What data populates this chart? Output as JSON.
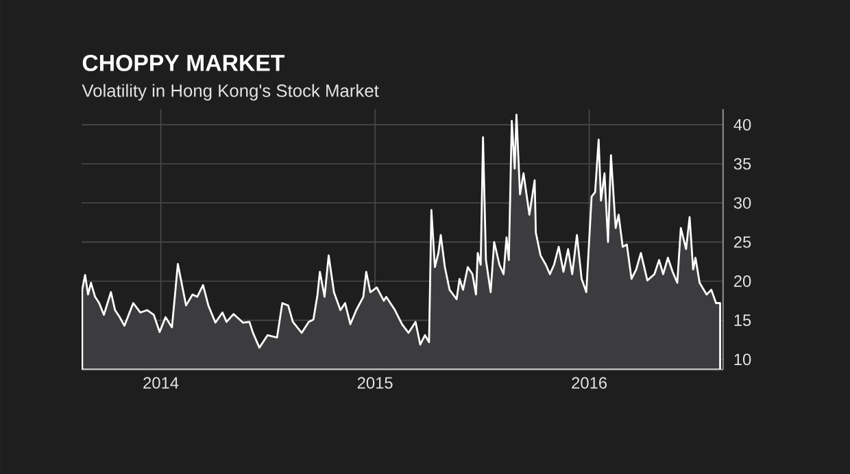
{
  "chart_data": {
    "type": "area",
    "title": "CHOPPY MARKET",
    "subtitle": "Volatility in Hong Kong's Stock Market",
    "x": [
      "2013-08-20",
      "2013-08-25",
      "2013-08-30",
      "2013-09-04",
      "2013-09-11",
      "2013-09-18",
      "2013-09-26",
      "2013-10-08",
      "2013-10-15",
      "2013-10-23",
      "2013-10-31",
      "2013-11-15",
      "2013-11-27",
      "2013-12-09",
      "2013-12-20",
      "2013-12-30",
      "2014-01-09",
      "2014-01-20",
      "2014-01-30",
      "2014-02-13",
      "2014-02-24",
      "2014-03-04",
      "2014-03-14",
      "2014-03-23",
      "2014-04-04",
      "2014-04-16",
      "2014-04-23",
      "2014-05-05",
      "2014-05-21",
      "2014-06-01",
      "2014-06-07",
      "2014-06-18",
      "2014-07-02",
      "2014-07-18",
      "2014-07-27",
      "2014-08-06",
      "2014-08-14",
      "2014-08-29",
      "2014-09-10",
      "2014-09-18",
      "2014-09-25",
      "2014-09-29",
      "2014-10-07",
      "2014-10-14",
      "2014-10-23",
      "2014-11-03",
      "2014-11-11",
      "2014-11-20",
      "2014-11-30",
      "2014-12-12",
      "2014-12-17",
      "2014-12-24",
      "2015-01-04",
      "2015-01-16",
      "2015-01-20",
      "2015-02-04",
      "2015-02-16",
      "2015-02-27",
      "2015-03-11",
      "2015-03-19",
      "2015-03-27",
      "2015-04-03",
      "2015-04-07",
      "2015-04-13",
      "2015-04-19",
      "2015-04-23",
      "2015-04-30",
      "2015-05-08",
      "2015-05-20",
      "2015-05-25",
      "2015-05-31",
      "2015-06-08",
      "2015-06-16",
      "2015-06-22",
      "2015-06-25",
      "2015-06-30",
      "2015-07-04",
      "2015-07-09",
      "2015-07-17",
      "2015-07-23",
      "2015-08-01",
      "2015-08-08",
      "2015-08-13",
      "2015-08-17",
      "2015-08-22",
      "2015-08-27",
      "2015-08-30",
      "2015-09-05",
      "2015-09-11",
      "2015-09-21",
      "2015-09-30",
      "2015-10-02",
      "2015-10-10",
      "2015-10-19",
      "2015-10-26",
      "2015-11-02",
      "2015-11-10",
      "2015-11-18",
      "2015-11-26",
      "2015-12-03",
      "2015-12-11",
      "2015-12-19",
      "2015-12-27",
      "2016-01-05",
      "2016-01-11",
      "2016-01-17",
      "2016-01-21",
      "2016-01-27",
      "2016-02-02",
      "2016-02-07",
      "2016-02-15",
      "2016-02-20",
      "2016-02-27",
      "2016-03-05",
      "2016-03-13",
      "2016-03-21",
      "2016-03-29",
      "2016-04-09",
      "2016-04-21",
      "2016-04-29",
      "2016-05-06",
      "2016-05-14",
      "2016-05-22",
      "2016-05-30",
      "2016-06-05",
      "2016-06-14",
      "2016-06-20",
      "2016-06-26",
      "2016-06-30",
      "2016-07-07",
      "2016-07-19",
      "2016-07-27",
      "2016-08-04",
      "2016-08-11"
    ],
    "values": [
      18.9,
      20.8,
      18.3,
      19.8,
      18,
      17.2,
      15.7,
      18.6,
      16.3,
      15.4,
      14.3,
      17.2,
      16,
      16.3,
      15.7,
      13.5,
      15.4,
      14.1,
      22.2,
      16.9,
      18.3,
      18,
      19.5,
      16.9,
      14.7,
      16,
      14.8,
      15.8,
      14.7,
      14.8,
      13.4,
      11.5,
      13.1,
      12.8,
      17.2,
      16.9,
      14.8,
      13.4,
      14.8,
      15.1,
      18.3,
      21.2,
      18,
      23.3,
      18.6,
      16.3,
      17.2,
      14.5,
      16.3,
      18,
      21.2,
      18.6,
      19.2,
      17.5,
      18,
      16.3,
      14.5,
      13.4,
      14.8,
      11.9,
      13.1,
      12.2,
      29.1,
      21.8,
      23.6,
      25.9,
      21.8,
      18.9,
      17.7,
      20.3,
      18.9,
      21.8,
      20.9,
      18.3,
      23.6,
      22.1,
      38.4,
      22.7,
      18.6,
      25,
      22.1,
      20.9,
      25.6,
      22.7,
      40.5,
      34.4,
      41.3,
      31.1,
      33.8,
      28.5,
      32.9,
      26.2,
      23.3,
      22.1,
      20.9,
      22.1,
      24.4,
      21.2,
      24.1,
      20.9,
      25.9,
      20.3,
      18.6,
      30.8,
      31.4,
      38.1,
      30.3,
      33.8,
      25,
      36.1,
      26.8,
      28.5,
      24.4,
      24.7,
      20.3,
      21.5,
      23.6,
      20.1,
      20.9,
      22.7,
      20.9,
      23,
      21.2,
      19.8,
      26.8,
      24.1,
      28.2,
      21.5,
      23,
      19.8,
      18.3,
      18.9,
      17.2,
      17.2
    ],
    "color": "#3c3c3e",
    "xlim": [
      "2013-08-19",
      "2016-08-16"
    ],
    "xticks": [
      "2014",
      "2015",
      "2016"
    ],
    "ylim": [
      8.7,
      42
    ],
    "yticks": [
      10,
      15,
      20,
      25,
      30,
      35,
      40
    ],
    "grid": true
  }
}
